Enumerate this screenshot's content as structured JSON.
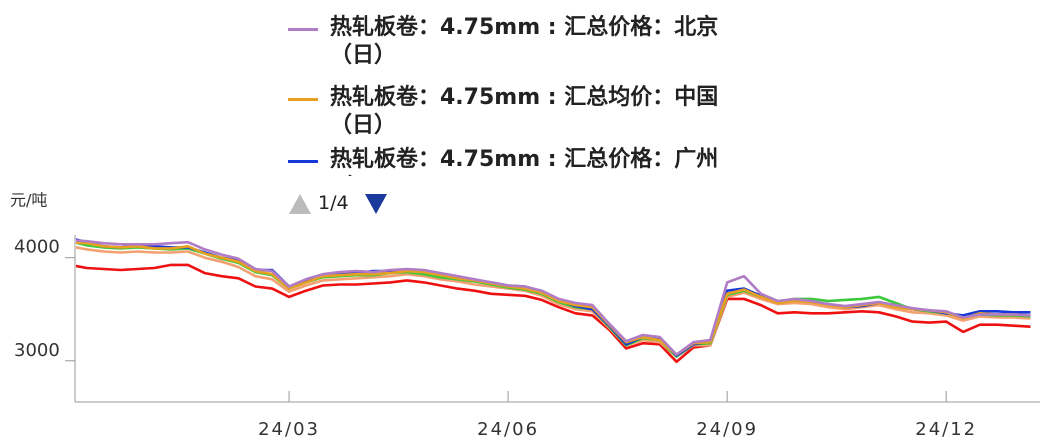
{
  "chart_data": {
    "type": "line",
    "y_axis_label": "元/吨",
    "legend_page": "1/4",
    "categories": [
      null,
      null,
      null,
      null,
      null,
      null,
      null,
      null,
      null,
      null,
      null,
      null,
      null,
      "24/03",
      null,
      null,
      null,
      null,
      null,
      null,
      null,
      null,
      null,
      null,
      null,
      null,
      "24/06",
      null,
      null,
      null,
      null,
      null,
      null,
      null,
      null,
      null,
      null,
      null,
      null,
      "24/09",
      null,
      null,
      null,
      null,
      null,
      null,
      null,
      null,
      null,
      null,
      null,
      null,
      "24/12",
      null,
      null,
      null,
      null,
      null
    ],
    "ylim": [
      2600,
      4220
    ],
    "yticks": [
      3000,
      4000
    ],
    "grid": false,
    "series": [
      {
        "name": "热轧板卷：4.75mm : 汇总价格：北京（日）",
        "color": "#b07cc6",
        "values": [
          4170,
          4160,
          4140,
          4130,
          4130,
          4130,
          4140,
          4150,
          4080,
          4030,
          3990,
          3890,
          3870,
          3720,
          3790,
          3840,
          3860,
          3870,
          3860,
          3880,
          3890,
          3880,
          3850,
          3820,
          3790,
          3760,
          3730,
          3720,
          3680,
          3600,
          3560,
          3540,
          3360,
          3190,
          3250,
          3230,
          3060,
          3180,
          3200,
          3760,
          3820,
          3650,
          3580,
          3600,
          3580,
          3550,
          3530,
          3550,
          3570,
          3540,
          3510,
          3490,
          3480,
          3420,
          3450,
          3450,
          3450,
          3440
        ]
      },
      {
        "name": "热轧板卷：4.75mm : 汇总均价：中国（日）",
        "color": "#e8a020",
        "values": [
          4150,
          4140,
          4110,
          4100,
          4110,
          4090,
          4090,
          4110,
          4040,
          4000,
          3960,
          3870,
          3840,
          3700,
          3760,
          3820,
          3830,
          3840,
          3840,
          3850,
          3870,
          3860,
          3830,
          3800,
          3780,
          3750,
          3720,
          3700,
          3660,
          3580,
          3540,
          3520,
          3350,
          3180,
          3230,
          3200,
          3060,
          3170,
          3180,
          3650,
          3690,
          3620,
          3560,
          3580,
          3570,
          3540,
          3520,
          3540,
          3560,
          3520,
          3500,
          3490,
          3470,
          3410,
          3460,
          3450,
          3450,
          3440
        ]
      },
      {
        "name": "热轧板卷：4.75mm : 汇总价格：广州（",
        "color": "#1638d8",
        "values": [
          4190,
          4150,
          4110,
          4100,
          4120,
          4110,
          4100,
          4100,
          4050,
          4000,
          3970,
          3880,
          3880,
          3720,
          3780,
          3830,
          3850,
          3850,
          3870,
          3870,
          3880,
          3870,
          3840,
          3810,
          3780,
          3760,
          3730,
          3720,
          3670,
          3590,
          3530,
          3500,
          3340,
          3160,
          3230,
          3220,
          3050,
          3160,
          3190,
          3680,
          3700,
          3630,
          3570,
          3590,
          3570,
          3550,
          3520,
          3530,
          3560,
          3530,
          3500,
          3490,
          3460,
          3440,
          3480,
          3480,
          3470,
          3470
        ]
      },
      {
        "color": "#3cc83c",
        "values": [
          4160,
          4120,
          4100,
          4090,
          4100,
          4090,
          4080,
          4090,
          4040,
          3990,
          3950,
          3860,
          3830,
          3700,
          3760,
          3810,
          3820,
          3830,
          3830,
          3850,
          3860,
          3840,
          3810,
          3790,
          3770,
          3740,
          3710,
          3690,
          3650,
          3570,
          3520,
          3500,
          3330,
          3150,
          3220,
          3200,
          3040,
          3160,
          3170,
          3640,
          3680,
          3620,
          3570,
          3600,
          3600,
          3580,
          3590,
          3600,
          3620,
          3560,
          3500,
          3480,
          3460,
          3420,
          3450,
          3440,
          3440,
          3430
        ]
      },
      {
        "color": "#f4a070",
        "values": [
          4110,
          4080,
          4060,
          4050,
          4060,
          4050,
          4050,
          4060,
          4000,
          3960,
          3910,
          3820,
          3790,
          3670,
          3730,
          3780,
          3790,
          3800,
          3810,
          3820,
          3840,
          3820,
          3790,
          3770,
          3740,
          3720,
          3700,
          3680,
          3630,
          3550,
          3500,
          3480,
          3320,
          3150,
          3200,
          3180,
          3040,
          3150,
          3150,
          3620,
          3660,
          3600,
          3550,
          3560,
          3550,
          3520,
          3500,
          3520,
          3540,
          3500,
          3470,
          3460,
          3440,
          3390,
          3430,
          3420,
          3420,
          3410
        ]
      },
      {
        "color": "#ee1111",
        "values": [
          3930,
          3900,
          3890,
          3880,
          3890,
          3900,
          3930,
          3930,
          3850,
          3820,
          3800,
          3720,
          3700,
          3620,
          3680,
          3730,
          3740,
          3740,
          3750,
          3760,
          3780,
          3760,
          3730,
          3700,
          3680,
          3650,
          3640,
          3630,
          3590,
          3520,
          3460,
          3440,
          3300,
          3120,
          3170,
          3160,
          2990,
          3130,
          3150,
          3600,
          3600,
          3540,
          3460,
          3470,
          3460,
          3460,
          3470,
          3480,
          3470,
          3430,
          3380,
          3370,
          3380,
          3280,
          3350,
          3350,
          3340,
          3330
        ]
      }
    ]
  }
}
